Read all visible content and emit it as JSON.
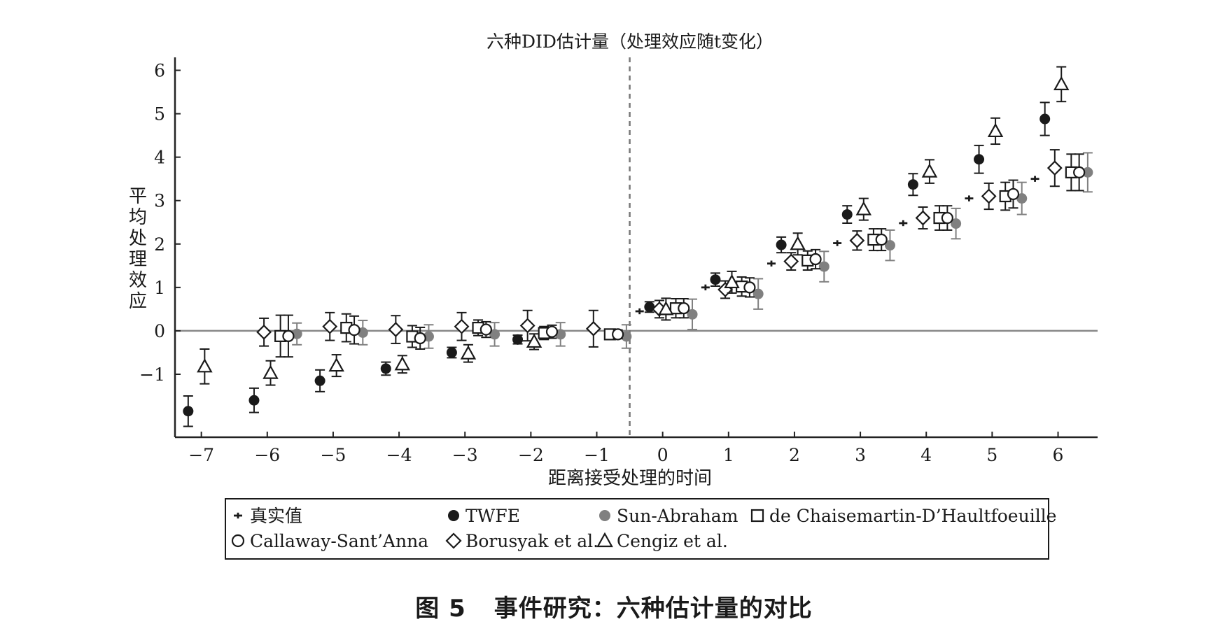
{
  "caption": {
    "label": "图 5",
    "text": "事件研究：六种估计量的对比"
  },
  "chart_data": {
    "type": "scatter",
    "title": "六种DID估计量（处理效应随t变化）",
    "xlabel": "距离接受处理的时间",
    "ylabel": "平均处理效应",
    "xlim": [
      -7.4,
      6.6
    ],
    "ylim": [
      -2.45,
      6.25
    ],
    "xticks": [
      -7,
      -6,
      -5,
      -4,
      -3,
      -2,
      -1,
      0,
      1,
      2,
      3,
      4,
      5,
      6
    ],
    "xtick_labels": [
      "−7",
      "−6",
      "−5",
      "−4",
      "−3",
      "−2",
      "−1",
      "0",
      "1",
      "2",
      "3",
      "4",
      "5",
      "6"
    ],
    "yticks": [
      -1,
      0,
      1,
      2,
      3,
      4,
      5,
      6
    ],
    "ytick_labels": [
      "−1",
      "0",
      "1",
      "2",
      "3",
      "4",
      "5",
      "6"
    ],
    "reference_line_y": 0,
    "treatment_line_x": -0.5,
    "grid": false,
    "legend_position": "bottom",
    "colors": {
      "black": "#1a1a1a",
      "gray": "#808080",
      "axis": "#222222",
      "zero_line": "#888888"
    },
    "series": [
      {
        "name": "真实值",
        "marker": "plus",
        "color": "#1a1a1a",
        "x": [
          -0.35,
          0.65,
          1.65,
          2.65,
          3.65,
          4.65,
          5.65
        ],
        "y": [
          0.45,
          1.0,
          1.55,
          2.02,
          2.48,
          3.05,
          3.5
        ],
        "err": [
          0,
          0,
          0,
          0,
          0,
          0,
          0
        ]
      },
      {
        "name": "TWFE",
        "marker": "filled-circle",
        "color": "#1a1a1a",
        "x": [
          -7.2,
          -6.2,
          -5.2,
          -4.2,
          -3.2,
          -2.2,
          -0.2,
          0.8,
          1.8,
          2.8,
          3.8,
          4.8,
          5.8
        ],
        "y": [
          -1.85,
          -1.6,
          -1.15,
          -0.87,
          -0.5,
          -0.2,
          0.55,
          1.18,
          1.98,
          2.68,
          3.37,
          3.95,
          4.88
        ],
        "err": [
          0.35,
          0.28,
          0.25,
          0.15,
          0.12,
          0.1,
          0.12,
          0.15,
          0.18,
          0.2,
          0.25,
          0.32,
          0.38
        ]
      },
      {
        "name": "Sun-Abraham",
        "marker": "filled-circle",
        "color": "#808080",
        "x": [
          -5.55,
          -4.55,
          -3.55,
          -2.55,
          -1.55,
          -0.55,
          0.45,
          1.45,
          2.45,
          3.45,
          4.45,
          5.45,
          6.45
        ],
        "y": [
          -0.07,
          -0.04,
          -0.13,
          -0.08,
          -0.08,
          -0.13,
          0.38,
          0.85,
          1.48,
          1.97,
          2.47,
          3.05,
          3.65
        ],
        "err": [
          0.25,
          0.28,
          0.27,
          0.27,
          0.27,
          0.27,
          0.35,
          0.35,
          0.35,
          0.35,
          0.35,
          0.37,
          0.45
        ]
      },
      {
        "name": "de Chaisemartin-D’Haultfoeuille",
        "marker": "open-square",
        "color": "#1a1a1a",
        "x": [
          -5.8,
          -4.8,
          -3.8,
          -2.8,
          -1.8,
          -0.8,
          0.2,
          1.2,
          2.2,
          3.2,
          4.2,
          5.2,
          6.2
        ],
        "y": [
          -0.12,
          0.07,
          -0.13,
          0.07,
          -0.05,
          -0.08,
          0.52,
          1.02,
          1.62,
          2.1,
          2.6,
          3.1,
          3.65
        ],
        "err": [
          0.48,
          0.32,
          0.25,
          0.18,
          0.15,
          0.1,
          0.22,
          0.22,
          0.22,
          0.25,
          0.28,
          0.32,
          0.42
        ]
      },
      {
        "name": "Callaway-Sant’Anna",
        "marker": "open-circle",
        "color": "#1a1a1a",
        "x": [
          -5.68,
          -4.68,
          -3.68,
          -2.68,
          -1.68,
          -0.68,
          0.32,
          1.32,
          2.32,
          3.32,
          4.32,
          5.32,
          6.32
        ],
        "y": [
          -0.12,
          0.02,
          -0.17,
          0.03,
          -0.02,
          -0.08,
          0.52,
          1.0,
          1.65,
          2.1,
          2.6,
          3.15,
          3.65
        ],
        "err": [
          0.48,
          0.32,
          0.25,
          0.18,
          0.15,
          0.1,
          0.22,
          0.22,
          0.22,
          0.25,
          0.28,
          0.32,
          0.42
        ]
      },
      {
        "name": "Borusyak et al.",
        "marker": "open-diamond",
        "color": "#1a1a1a",
        "x": [
          -6.05,
          -5.05,
          -4.05,
          -3.05,
          -2.05,
          -1.05,
          -0.05,
          0.95,
          1.95,
          2.95,
          3.95,
          4.95,
          5.95
        ],
        "y": [
          -0.03,
          0.1,
          0.03,
          0.1,
          0.12,
          0.05,
          0.5,
          0.95,
          1.6,
          2.08,
          2.6,
          3.1,
          3.75
        ],
        "err": [
          0.32,
          0.32,
          0.32,
          0.32,
          0.35,
          0.42,
          0.2,
          0.2,
          0.2,
          0.22,
          0.25,
          0.3,
          0.42
        ]
      },
      {
        "name": "Cengiz et al.",
        "marker": "open-triangle",
        "color": "#1a1a1a",
        "x": [
          -6.95,
          -5.95,
          -4.95,
          -3.95,
          -2.95,
          -1.95,
          0.05,
          1.05,
          2.05,
          3.05,
          4.05,
          5.05,
          6.05
        ],
        "y": [
          -0.82,
          -0.97,
          -0.8,
          -0.77,
          -0.52,
          -0.25,
          0.5,
          1.12,
          2.0,
          2.8,
          3.67,
          4.6,
          5.68
        ],
        "err": [
          0.4,
          0.28,
          0.25,
          0.2,
          0.2,
          0.18,
          0.25,
          0.25,
          0.25,
          0.25,
          0.27,
          0.3,
          0.4
        ]
      }
    ]
  }
}
